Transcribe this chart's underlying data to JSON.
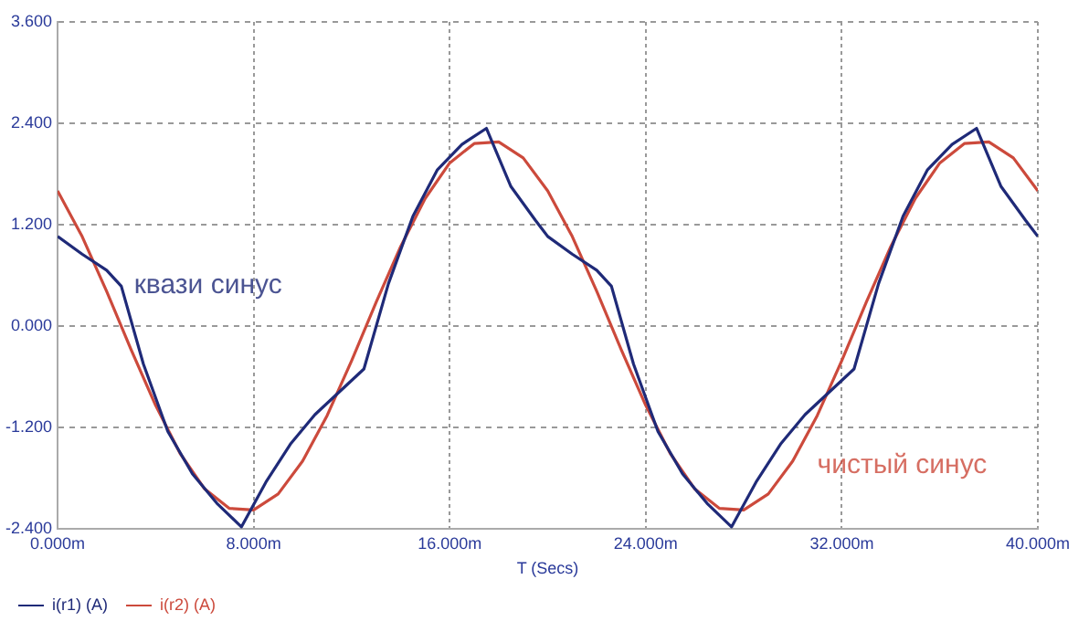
{
  "chart_data": {
    "type": "line",
    "xlabel": "T (Secs)",
    "xlim": [
      0,
      40
    ],
    "xticks": [
      {
        "value": 0,
        "label": "0.000m"
      },
      {
        "value": 8,
        "label": "8.000m"
      },
      {
        "value": 16,
        "label": "16.000m"
      },
      {
        "value": 24,
        "label": "24.000m"
      },
      {
        "value": 32,
        "label": "32.000m"
      },
      {
        "value": 40,
        "label": "40.000m"
      }
    ],
    "ylim": [
      -2.4,
      3.6
    ],
    "yticks": [
      {
        "value": -2.4,
        "label": "-2.400"
      },
      {
        "value": -1.2,
        "label": "-1.200"
      },
      {
        "value": 0,
        "label": "0.000"
      },
      {
        "value": 1.2,
        "label": "1.200"
      },
      {
        "value": 2.4,
        "label": "2.400"
      },
      {
        "value": 3.6,
        "label": "3.600"
      }
    ],
    "grid": true,
    "legend": "bottom",
    "marker": "none",
    "line_style": "solid",
    "series": [
      {
        "name": "i(r1) (A)",
        "color": "#1f2a78",
        "x": [
          0,
          1,
          2,
          2.6,
          3.5,
          4.5,
          5.5,
          6.5,
          7.5,
          8.5,
          9.5,
          10.5,
          11.5,
          12.5,
          13.5,
          14.5,
          15.5,
          16.5,
          17.5,
          18.5,
          19.5,
          20,
          21,
          22,
          22.6,
          23.5,
          24.5,
          25.5,
          26.5,
          27.5,
          28.5,
          29.5,
          30.5,
          31.5,
          32.5,
          33.5,
          34.5,
          35.5,
          36.5,
          37.5,
          38.5,
          39.5,
          40
        ],
        "values": [
          1.06,
          0.85,
          0.66,
          0.47,
          -0.45,
          -1.25,
          -1.75,
          -2.1,
          -2.38,
          -1.85,
          -1.4,
          -1.05,
          -0.78,
          -0.51,
          0.5,
          1.3,
          1.85,
          2.15,
          2.34,
          1.65,
          1.25,
          1.06,
          0.85,
          0.66,
          0.47,
          -0.45,
          -1.25,
          -1.75,
          -2.1,
          -2.38,
          -1.85,
          -1.4,
          -1.05,
          -0.78,
          -0.51,
          0.5,
          1.3,
          1.85,
          2.15,
          2.34,
          1.65,
          1.25,
          1.06
        ]
      },
      {
        "name": "i(r2) (A)",
        "color": "#cc4a3c",
        "x": [
          0,
          1,
          2,
          3,
          4,
          5,
          6,
          7,
          8,
          9,
          10,
          11,
          12,
          13,
          14,
          15,
          16,
          17,
          18,
          19,
          20,
          21,
          22,
          23,
          24,
          25,
          26,
          27,
          28,
          29,
          30,
          31,
          32,
          33,
          34,
          35,
          36,
          37,
          38,
          39,
          40
        ],
        "values": [
          1.6,
          1.06,
          0.41,
          -0.28,
          -0.94,
          -1.51,
          -1.93,
          -2.16,
          -2.18,
          -1.99,
          -1.6,
          -1.06,
          -0.41,
          0.28,
          0.94,
          1.51,
          1.93,
          2.16,
          2.18,
          1.99,
          1.6,
          1.06,
          0.41,
          -0.28,
          -0.94,
          -1.51,
          -1.93,
          -2.16,
          -2.18,
          -1.99,
          -1.6,
          -1.06,
          -0.41,
          0.28,
          0.94,
          1.51,
          1.93,
          2.16,
          2.18,
          1.99,
          1.6
        ]
      }
    ],
    "annotations": [
      "квази синус",
      "чистый синус"
    ]
  }
}
